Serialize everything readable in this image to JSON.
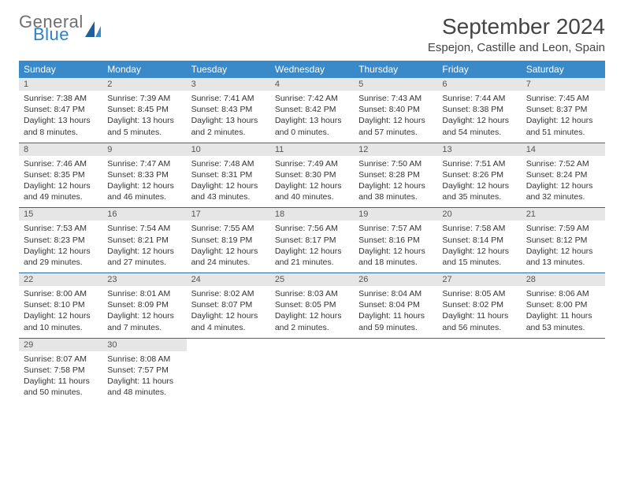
{
  "logo": {
    "general": "General",
    "blue": "Blue"
  },
  "title": "September 2024",
  "location": "Espejon, Castille and Leon, Spain",
  "colors": {
    "header_bg": "#3a89c9",
    "header_text": "#ffffff",
    "daynum_bg": "#e6e6e6",
    "week_border": "#2a6aa0",
    "logo_gray": "#6f6f6f",
    "logo_blue": "#2f7fc2"
  },
  "weekdays": [
    "Sunday",
    "Monday",
    "Tuesday",
    "Wednesday",
    "Thursday",
    "Friday",
    "Saturday"
  ],
  "weeks": [
    [
      {
        "n": "1",
        "sr": "Sunrise: 7:38 AM",
        "ss": "Sunset: 8:47 PM",
        "d1": "Daylight: 13 hours",
        "d2": "and 8 minutes."
      },
      {
        "n": "2",
        "sr": "Sunrise: 7:39 AM",
        "ss": "Sunset: 8:45 PM",
        "d1": "Daylight: 13 hours",
        "d2": "and 5 minutes."
      },
      {
        "n": "3",
        "sr": "Sunrise: 7:41 AM",
        "ss": "Sunset: 8:43 PM",
        "d1": "Daylight: 13 hours",
        "d2": "and 2 minutes."
      },
      {
        "n": "4",
        "sr": "Sunrise: 7:42 AM",
        "ss": "Sunset: 8:42 PM",
        "d1": "Daylight: 13 hours",
        "d2": "and 0 minutes."
      },
      {
        "n": "5",
        "sr": "Sunrise: 7:43 AM",
        "ss": "Sunset: 8:40 PM",
        "d1": "Daylight: 12 hours",
        "d2": "and 57 minutes."
      },
      {
        "n": "6",
        "sr": "Sunrise: 7:44 AM",
        "ss": "Sunset: 8:38 PM",
        "d1": "Daylight: 12 hours",
        "d2": "and 54 minutes."
      },
      {
        "n": "7",
        "sr": "Sunrise: 7:45 AM",
        "ss": "Sunset: 8:37 PM",
        "d1": "Daylight: 12 hours",
        "d2": "and 51 minutes."
      }
    ],
    [
      {
        "n": "8",
        "sr": "Sunrise: 7:46 AM",
        "ss": "Sunset: 8:35 PM",
        "d1": "Daylight: 12 hours",
        "d2": "and 49 minutes."
      },
      {
        "n": "9",
        "sr": "Sunrise: 7:47 AM",
        "ss": "Sunset: 8:33 PM",
        "d1": "Daylight: 12 hours",
        "d2": "and 46 minutes."
      },
      {
        "n": "10",
        "sr": "Sunrise: 7:48 AM",
        "ss": "Sunset: 8:31 PM",
        "d1": "Daylight: 12 hours",
        "d2": "and 43 minutes."
      },
      {
        "n": "11",
        "sr": "Sunrise: 7:49 AM",
        "ss": "Sunset: 8:30 PM",
        "d1": "Daylight: 12 hours",
        "d2": "and 40 minutes."
      },
      {
        "n": "12",
        "sr": "Sunrise: 7:50 AM",
        "ss": "Sunset: 8:28 PM",
        "d1": "Daylight: 12 hours",
        "d2": "and 38 minutes."
      },
      {
        "n": "13",
        "sr": "Sunrise: 7:51 AM",
        "ss": "Sunset: 8:26 PM",
        "d1": "Daylight: 12 hours",
        "d2": "and 35 minutes."
      },
      {
        "n": "14",
        "sr": "Sunrise: 7:52 AM",
        "ss": "Sunset: 8:24 PM",
        "d1": "Daylight: 12 hours",
        "d2": "and 32 minutes."
      }
    ],
    [
      {
        "n": "15",
        "sr": "Sunrise: 7:53 AM",
        "ss": "Sunset: 8:23 PM",
        "d1": "Daylight: 12 hours",
        "d2": "and 29 minutes."
      },
      {
        "n": "16",
        "sr": "Sunrise: 7:54 AM",
        "ss": "Sunset: 8:21 PM",
        "d1": "Daylight: 12 hours",
        "d2": "and 27 minutes."
      },
      {
        "n": "17",
        "sr": "Sunrise: 7:55 AM",
        "ss": "Sunset: 8:19 PM",
        "d1": "Daylight: 12 hours",
        "d2": "and 24 minutes."
      },
      {
        "n": "18",
        "sr": "Sunrise: 7:56 AM",
        "ss": "Sunset: 8:17 PM",
        "d1": "Daylight: 12 hours",
        "d2": "and 21 minutes."
      },
      {
        "n": "19",
        "sr": "Sunrise: 7:57 AM",
        "ss": "Sunset: 8:16 PM",
        "d1": "Daylight: 12 hours",
        "d2": "and 18 minutes."
      },
      {
        "n": "20",
        "sr": "Sunrise: 7:58 AM",
        "ss": "Sunset: 8:14 PM",
        "d1": "Daylight: 12 hours",
        "d2": "and 15 minutes."
      },
      {
        "n": "21",
        "sr": "Sunrise: 7:59 AM",
        "ss": "Sunset: 8:12 PM",
        "d1": "Daylight: 12 hours",
        "d2": "and 13 minutes."
      }
    ],
    [
      {
        "n": "22",
        "sr": "Sunrise: 8:00 AM",
        "ss": "Sunset: 8:10 PM",
        "d1": "Daylight: 12 hours",
        "d2": "and 10 minutes."
      },
      {
        "n": "23",
        "sr": "Sunrise: 8:01 AM",
        "ss": "Sunset: 8:09 PM",
        "d1": "Daylight: 12 hours",
        "d2": "and 7 minutes."
      },
      {
        "n": "24",
        "sr": "Sunrise: 8:02 AM",
        "ss": "Sunset: 8:07 PM",
        "d1": "Daylight: 12 hours",
        "d2": "and 4 minutes."
      },
      {
        "n": "25",
        "sr": "Sunrise: 8:03 AM",
        "ss": "Sunset: 8:05 PM",
        "d1": "Daylight: 12 hours",
        "d2": "and 2 minutes."
      },
      {
        "n": "26",
        "sr": "Sunrise: 8:04 AM",
        "ss": "Sunset: 8:04 PM",
        "d1": "Daylight: 11 hours",
        "d2": "and 59 minutes."
      },
      {
        "n": "27",
        "sr": "Sunrise: 8:05 AM",
        "ss": "Sunset: 8:02 PM",
        "d1": "Daylight: 11 hours",
        "d2": "and 56 minutes."
      },
      {
        "n": "28",
        "sr": "Sunrise: 8:06 AM",
        "ss": "Sunset: 8:00 PM",
        "d1": "Daylight: 11 hours",
        "d2": "and 53 minutes."
      }
    ],
    [
      {
        "n": "29",
        "sr": "Sunrise: 8:07 AM",
        "ss": "Sunset: 7:58 PM",
        "d1": "Daylight: 11 hours",
        "d2": "and 50 minutes."
      },
      {
        "n": "30",
        "sr": "Sunrise: 8:08 AM",
        "ss": "Sunset: 7:57 PM",
        "d1": "Daylight: 11 hours",
        "d2": "and 48 minutes."
      },
      null,
      null,
      null,
      null,
      null
    ]
  ]
}
